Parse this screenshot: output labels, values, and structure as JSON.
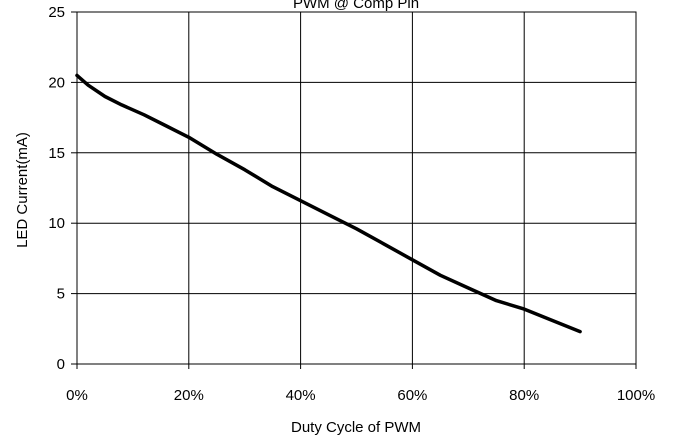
{
  "chart_data": {
    "type": "line",
    "title": "PWM @ Comp Pin",
    "xlabel": "Duty Cycle of PWM",
    "ylabel": "LED Current(mA)",
    "xlim": [
      0,
      100
    ],
    "ylim": [
      0,
      25
    ],
    "x_ticks": [
      0,
      20,
      40,
      60,
      80,
      100
    ],
    "x_tick_labels": [
      "0%",
      "20%",
      "40%",
      "60%",
      "80%",
      "100%"
    ],
    "y_ticks": [
      0,
      5,
      10,
      15,
      20,
      25
    ],
    "y_tick_labels": [
      "0",
      "5",
      "10",
      "15",
      "20",
      "25"
    ],
    "grid": true,
    "line_color": "#000000",
    "series": [
      {
        "x": [
          0,
          2,
          5,
          8,
          12,
          16,
          20,
          25,
          30,
          35,
          40,
          45,
          50,
          55,
          60,
          65,
          70,
          75,
          80,
          85,
          90
        ],
        "y": [
          20.5,
          19.8,
          19.0,
          18.4,
          17.7,
          16.9,
          16.1,
          14.9,
          13.8,
          12.6,
          11.6,
          10.6,
          9.6,
          8.5,
          7.4,
          6.3,
          5.4,
          4.5,
          3.9,
          3.1,
          2.3
        ]
      }
    ]
  }
}
